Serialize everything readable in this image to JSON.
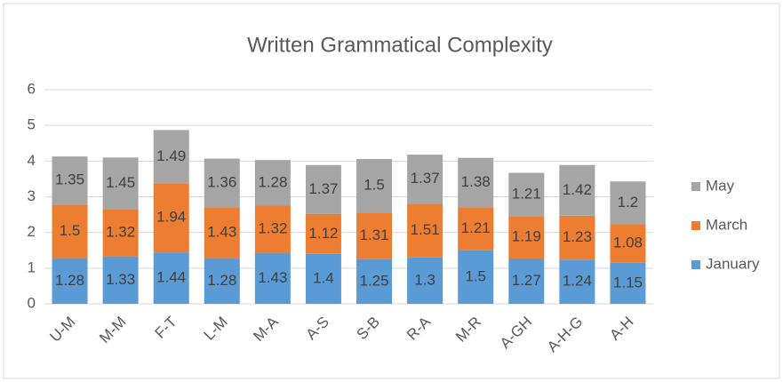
{
  "chart_data": {
    "type": "stacked_bar",
    "title": "Written Grammatical Complexity",
    "categories": [
      "U-M",
      "M-M",
      "F-T",
      "L-M",
      "M-A",
      "A-S",
      "S-B",
      "R-A",
      "M-R",
      "A-GH",
      "A-H-G",
      "A-H"
    ],
    "series": [
      {
        "name": "January",
        "color": "#5b9bd5",
        "values": [
          1.28,
          1.33,
          1.44,
          1.28,
          1.43,
          1.4,
          1.25,
          1.3,
          1.5,
          1.27,
          1.24,
          1.15
        ]
      },
      {
        "name": "March",
        "color": "#ed7d31",
        "values": [
          1.5,
          1.32,
          1.94,
          1.43,
          1.32,
          1.12,
          1.31,
          1.51,
          1.21,
          1.19,
          1.23,
          1.08
        ]
      },
      {
        "name": "May",
        "color": "#a5a5a5",
        "values": [
          1.35,
          1.45,
          1.49,
          1.36,
          1.28,
          1.37,
          1.5,
          1.37,
          1.38,
          1.21,
          1.42,
          1.2
        ]
      }
    ],
    "ylim": [
      0,
      6
    ],
    "yticks": [
      0,
      1,
      2,
      3,
      4,
      5,
      6
    ],
    "grid": true,
    "legend": "right"
  }
}
